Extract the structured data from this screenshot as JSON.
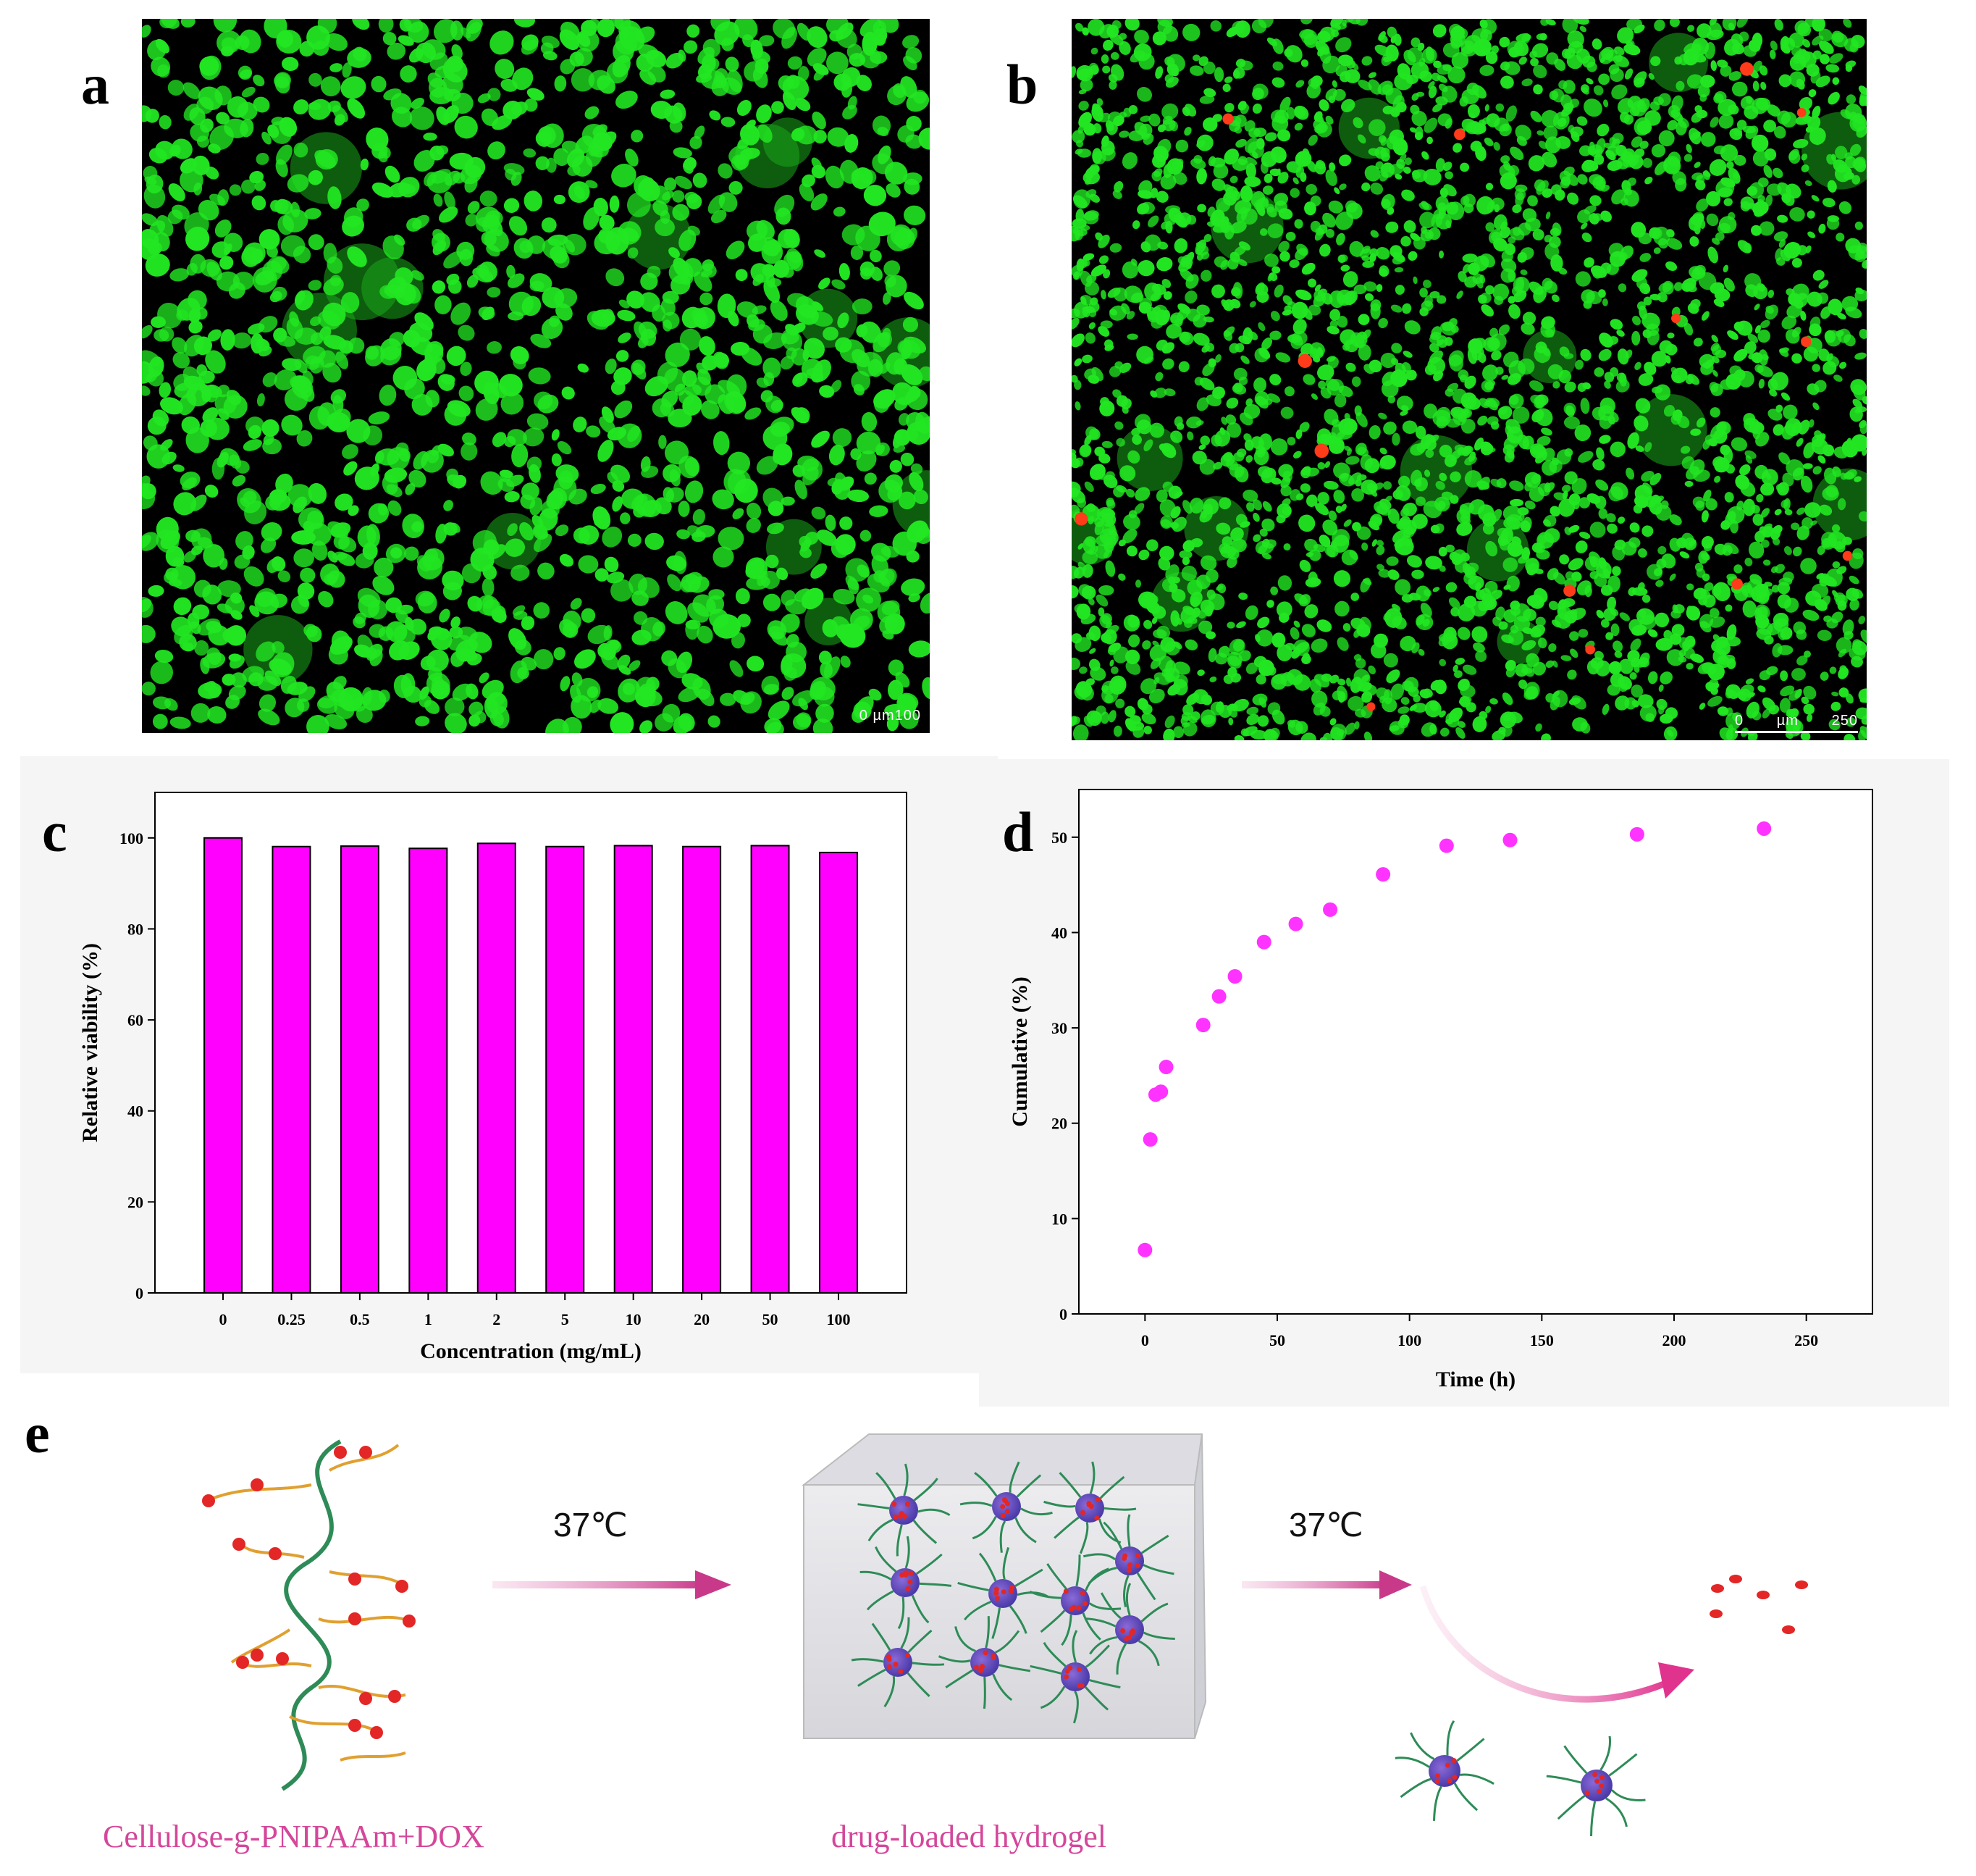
{
  "panels": {
    "a": {
      "letter": "a",
      "scale_label": "0 µm100"
    },
    "b": {
      "letter": "b",
      "scale_label_0": "0",
      "scale_label_unit": "µm",
      "scale_label_val": "250"
    },
    "c": {
      "letter": "c"
    },
    "d": {
      "letter": "d"
    },
    "e": {
      "letter": "e"
    }
  },
  "colors": {
    "bar_fill": "#ff00ff",
    "scatter_fill": "#ff33ff",
    "live_cell": "#22e622",
    "dead_cell": "#ff3b1a",
    "caption": "#d4479a",
    "arrow": "#c9398a"
  },
  "chart_data": [
    {
      "type": "bar",
      "panel": "c",
      "categories": [
        "0",
        "0.25",
        "0.5",
        "1",
        "2",
        "5",
        "10",
        "20",
        "50",
        "100"
      ],
      "values": [
        100,
        98.1,
        98.2,
        97.7,
        98.8,
        98.1,
        98.3,
        98.1,
        98.3,
        96.8
      ],
      "xlabel": "Concentration (mg/mL)",
      "ylabel": "Relative viability (%)",
      "ylim": [
        0,
        110
      ],
      "yticks": [
        0,
        20,
        40,
        60,
        80,
        100
      ],
      "grid": false
    },
    {
      "type": "scatter",
      "panel": "d",
      "x": [
        0,
        2,
        4,
        6,
        8,
        22,
        28,
        34,
        45,
        57,
        70,
        90,
        114,
        138,
        186,
        234
      ],
      "y": [
        6.7,
        18.3,
        23.0,
        23.3,
        25.9,
        30.3,
        33.3,
        35.4,
        39.0,
        40.9,
        42.4,
        46.1,
        49.1,
        49.7,
        50.3,
        50.9
      ],
      "xlabel": "Time (h)",
      "ylabel": "Cumulative (%)",
      "xlim": [
        -25,
        275
      ],
      "ylim": [
        0,
        55
      ],
      "xticks": [
        0,
        50,
        100,
        150,
        200,
        250
      ],
      "yticks": [
        0,
        10,
        20,
        30,
        40,
        50
      ],
      "grid": false
    }
  ],
  "schematic": {
    "step1_temp": "37℃",
    "step2_temp": "37℃",
    "caption_left": "Cellulose-g-PNIPAAm+DOX",
    "caption_middle": "drug-loaded hydrogel"
  }
}
